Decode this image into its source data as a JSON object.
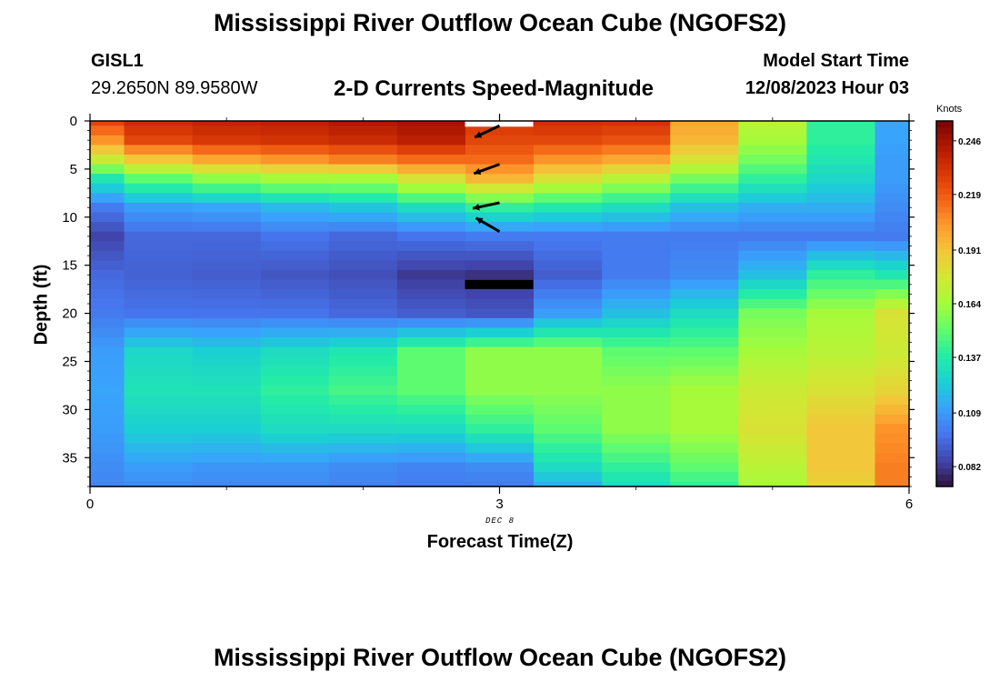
{
  "header": {
    "title": "Mississippi River Outflow Ocean Cube (NGOFS2)",
    "station": "GISL1",
    "coords": "29.2650N  89.9580W",
    "subtitle": "2-D Currents Speed-Magnitude",
    "model_start_label": "Model Start Time",
    "model_start_value": "12/08/2023 Hour 03"
  },
  "footer": {
    "title": "Mississippi River Outflow Ocean Cube (NGOFS2)"
  },
  "chart_data": {
    "type": "heatmap",
    "title": "2-D Currents Speed-Magnitude",
    "xlabel": "Forecast Time(Z)",
    "ylabel": "Depth (ft)",
    "x_annotation": "DEC 8",
    "xlim": [
      0,
      6
    ],
    "ylim": [
      38,
      0
    ],
    "x_ticks": [
      "0",
      "3",
      "6"
    ],
    "y_ticks": [
      "0",
      "5",
      "10",
      "15",
      "20",
      "25",
      "30",
      "35"
    ],
    "colorbar": {
      "title": "Knots",
      "ticks": [
        "0.082",
        "0.109",
        "0.137",
        "0.164",
        "0.191",
        "0.219",
        "0.246"
      ],
      "range": [
        0.072,
        0.256
      ],
      "colors": [
        "#30123b",
        "#4145ab",
        "#4675ed",
        "#39a2fc",
        "#1bcfd4",
        "#24eca6",
        "#61fc6c",
        "#a4fc3b",
        "#d1e834",
        "#f3c63a",
        "#fe9b2d",
        "#f36315",
        "#d93806",
        "#b11901",
        "#7a0402"
      ]
    },
    "time_columns": [
      0,
      0.5,
      1,
      1.5,
      2,
      2.5,
      3,
      3.5,
      4,
      4.5,
      5,
      5.5,
      6
    ],
    "depth_rows": [
      0,
      1,
      2,
      3,
      4,
      5,
      6,
      7,
      8,
      9,
      10,
      11,
      12,
      13,
      14,
      15,
      16,
      17,
      18,
      19,
      20,
      21,
      22,
      23,
      24,
      25,
      26,
      27,
      28,
      29,
      30,
      31,
      32,
      33,
      34,
      35,
      36,
      37,
      38
    ],
    "profile_anchors": [
      {
        "time": 0,
        "depths": [
          0,
          2,
          4,
          6,
          9,
          12,
          16,
          20,
          24,
          28,
          32,
          36,
          38
        ],
        "speeds": [
          0.225,
          0.205,
          0.175,
          0.135,
          0.1,
          0.085,
          0.095,
          0.1,
          0.11,
          0.112,
          0.11,
          0.105,
          0.103
        ]
      },
      {
        "time": 0.5,
        "depths": [
          0,
          2,
          4,
          6,
          9,
          12,
          16,
          20,
          24,
          28,
          32,
          36,
          38
        ],
        "speeds": [
          0.235,
          0.225,
          0.19,
          0.15,
          0.11,
          0.095,
          0.093,
          0.098,
          0.128,
          0.133,
          0.125,
          0.11,
          0.105
        ]
      },
      {
        "time": 1,
        "depths": [
          0,
          2,
          4,
          6,
          9,
          12,
          16,
          20,
          24,
          28,
          32,
          36,
          38
        ],
        "speeds": [
          0.238,
          0.23,
          0.2,
          0.16,
          0.112,
          0.095,
          0.092,
          0.098,
          0.125,
          0.133,
          0.125,
          0.108,
          0.104
        ]
      },
      {
        "time": 1.5,
        "depths": [
          0,
          2,
          4,
          6,
          9,
          12,
          16,
          20,
          24,
          28,
          32,
          36,
          38
        ],
        "speeds": [
          0.24,
          0.232,
          0.205,
          0.165,
          0.118,
          0.098,
          0.09,
          0.098,
          0.13,
          0.14,
          0.13,
          0.108,
          0.104
        ]
      },
      {
        "time": 2,
        "depths": [
          0,
          2,
          4,
          6,
          9,
          12,
          16,
          20,
          24,
          28,
          32,
          36,
          38
        ],
        "speeds": [
          0.243,
          0.235,
          0.21,
          0.165,
          0.122,
          0.095,
          0.088,
          0.095,
          0.135,
          0.145,
          0.13,
          0.105,
          0.102
        ]
      },
      {
        "time": 2.5,
        "depths": [
          0,
          2,
          4,
          6,
          9,
          12,
          16,
          20,
          24,
          28,
          32,
          36,
          38
        ],
        "speeds": [
          0.246,
          0.24,
          0.215,
          0.18,
          0.13,
          0.098,
          0.082,
          0.092,
          0.15,
          0.15,
          0.13,
          0.103,
          0.1
        ]
      },
      {
        "time": 3,
        "depths": [
          0,
          2,
          4,
          6,
          9,
          12,
          16,
          20,
          24,
          28,
          32,
          36,
          38
        ],
        "speeds": [
          0.23,
          0.225,
          0.215,
          0.195,
          0.14,
          0.1,
          0.08,
          0.09,
          0.16,
          0.16,
          0.14,
          0.105,
          0.1
        ]
      },
      {
        "time": 3.5,
        "depths": [
          0,
          2,
          4,
          6,
          9,
          12,
          16,
          20,
          24,
          28,
          32,
          36,
          38
        ],
        "speeds": [
          0.233,
          0.225,
          0.205,
          0.18,
          0.135,
          0.1,
          0.092,
          0.11,
          0.16,
          0.16,
          0.15,
          0.13,
          0.115
        ]
      },
      {
        "time": 4,
        "depths": [
          0,
          2,
          4,
          6,
          9,
          12,
          16,
          20,
          24,
          28,
          32,
          36,
          38
        ],
        "speeds": [
          0.232,
          0.222,
          0.2,
          0.17,
          0.13,
          0.1,
          0.1,
          0.12,
          0.15,
          0.16,
          0.16,
          0.14,
          0.13
        ]
      },
      {
        "time": 4.5,
        "depths": [
          0,
          2,
          4,
          6,
          9,
          12,
          16,
          20,
          24,
          28,
          32,
          36,
          38
        ],
        "speeds": [
          0.2,
          0.195,
          0.18,
          0.155,
          0.12,
          0.1,
          0.105,
          0.13,
          0.15,
          0.165,
          0.165,
          0.15,
          0.14
        ]
      },
      {
        "time": 5,
        "depths": [
          0,
          2,
          4,
          6,
          9,
          12,
          16,
          20,
          24,
          28,
          32,
          36,
          38
        ],
        "speeds": [
          0.17,
          0.165,
          0.155,
          0.14,
          0.115,
          0.1,
          0.12,
          0.155,
          0.165,
          0.175,
          0.18,
          0.17,
          0.165
        ]
      },
      {
        "time": 5.5,
        "depths": [
          0,
          2,
          4,
          6,
          9,
          12,
          16,
          20,
          24,
          28,
          32,
          36,
          38
        ],
        "speeds": [
          0.14,
          0.14,
          0.135,
          0.128,
          0.115,
          0.1,
          0.14,
          0.165,
          0.17,
          0.18,
          0.19,
          0.19,
          0.185
        ]
      },
      {
        "time": 6,
        "depths": [
          0,
          2,
          4,
          6,
          9,
          12,
          16,
          20,
          24,
          28,
          32,
          36,
          38
        ],
        "speeds": [
          0.112,
          0.112,
          0.11,
          0.11,
          0.105,
          0.1,
          0.135,
          0.18,
          0.175,
          0.185,
          0.205,
          0.21,
          0.21
        ]
      }
    ],
    "vectors": [
      {
        "time": 3,
        "depth": 0.5,
        "direction_deg": 205
      },
      {
        "time": 3,
        "depth": 4.5,
        "direction_deg": 200
      },
      {
        "time": 3,
        "depth": 8.5,
        "direction_deg": 192
      },
      {
        "time": 3,
        "depth": 11.5,
        "direction_deg": 150
      }
    ],
    "markers": [
      {
        "type": "white-box",
        "time": 3,
        "depth": 0.25
      },
      {
        "type": "black-bar",
        "time": 3,
        "depth": 17
      }
    ]
  }
}
